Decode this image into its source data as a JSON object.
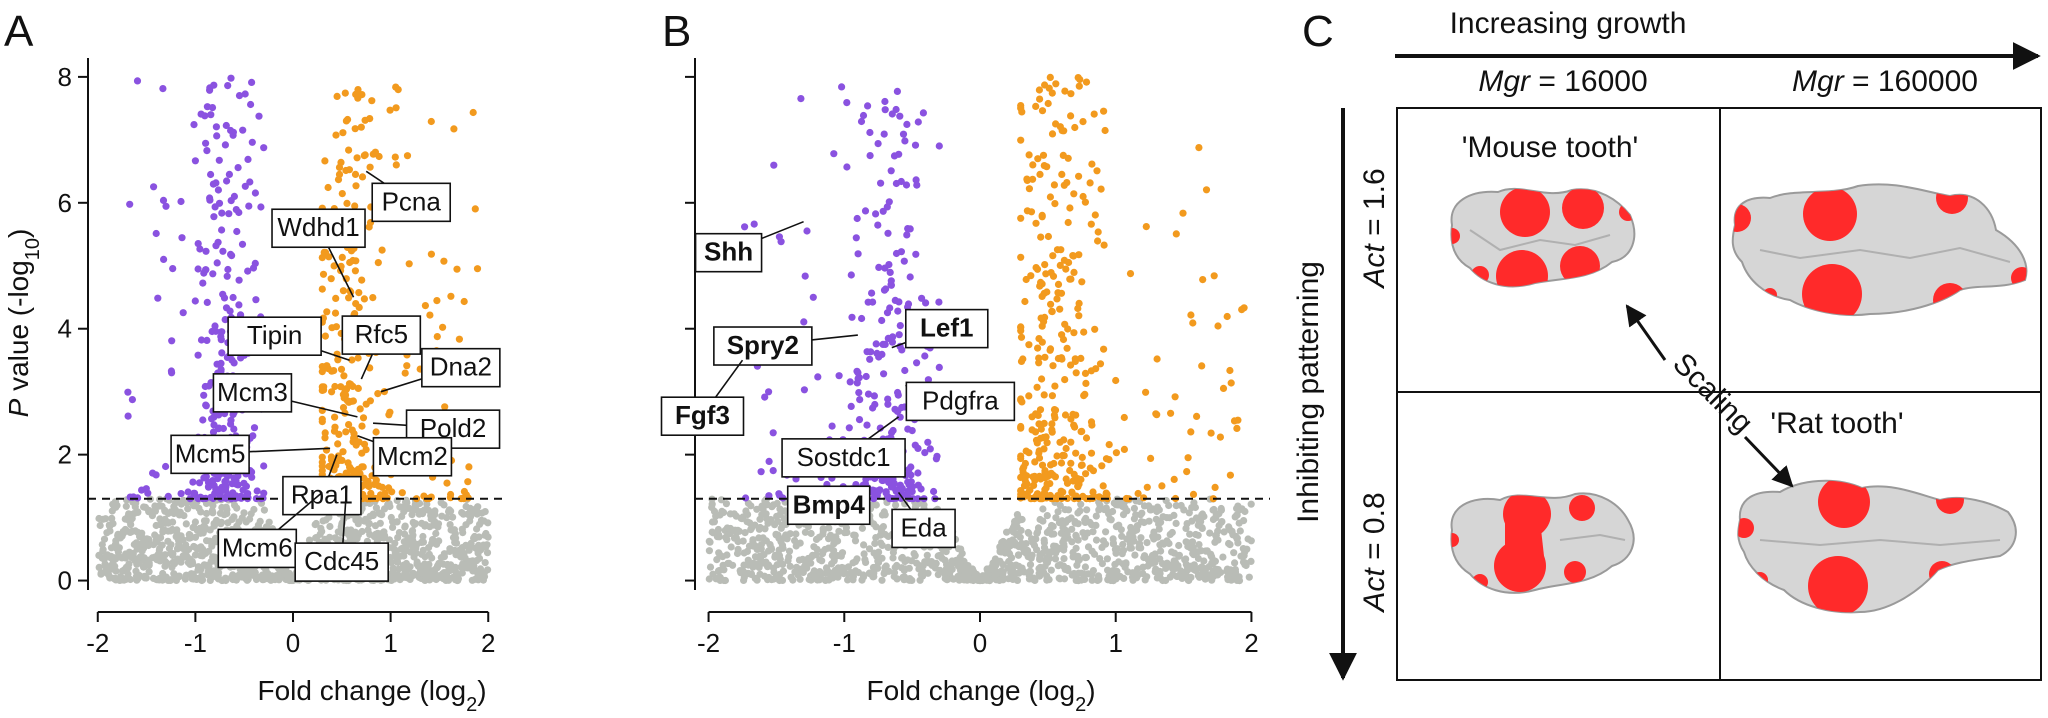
{
  "panels": [
    "A",
    "B",
    "C"
  ],
  "colors": {
    "up": "#f29a1e",
    "down": "#8a52e0",
    "ns": "#b9bcb6",
    "spot": "#ff2a2a",
    "tooth": "#d6d6d6"
  },
  "chart_data": [
    {
      "panel": "A",
      "type": "scatter",
      "title": "",
      "xlabel_main": "Fold change (log",
      "xlabel_sub": "2",
      "xlabel_close": ")",
      "ylabel_italic": "P",
      "ylabel_main": " value (-log",
      "ylabel_sub": "10",
      "ylabel_close": ")",
      "xlim": [
        -2.1,
        2.1
      ],
      "ylim": [
        -0.15,
        8.3
      ],
      "xticks": [
        -2,
        -1,
        0,
        1,
        2
      ],
      "xtick_labels": [
        "-2",
        "-1",
        "0",
        "1",
        "2"
      ],
      "yticks": [
        0,
        2,
        4,
        6,
        8
      ],
      "ytick_labels": [
        "0",
        "2",
        "4",
        "6",
        "8"
      ],
      "threshold": 1.3,
      "series": [
        {
          "name": "downregulated",
          "color": "#8a52e0",
          "seed": 11,
          "count": 330,
          "x_range": [
            -1.7,
            -0.3
          ],
          "y_range": [
            1.3,
            8.0
          ]
        },
        {
          "name": "upregulated",
          "color": "#f29a1e",
          "seed": 23,
          "count": 380,
          "x_range": [
            0.3,
            1.95
          ],
          "y_range": [
            1.3,
            8.0
          ]
        },
        {
          "name": "not significant",
          "color": "#b9bcb6",
          "seed": 37,
          "count": 1200,
          "x_range": [
            -2.0,
            2.0
          ],
          "y_range": [
            0,
            1.3
          ]
        }
      ],
      "labeled_genes": [
        {
          "name": "Pcna",
          "x": 0.75,
          "y": 6.5,
          "bold": false
        },
        {
          "name": "Wdhd1",
          "x": 0.62,
          "y": 4.5,
          "bold": false
        },
        {
          "name": "Tipin",
          "x": 0.58,
          "y": 3.5,
          "bold": false
        },
        {
          "name": "Rfc5",
          "x": 0.7,
          "y": 3.2,
          "bold": false
        },
        {
          "name": "Dna2",
          "x": 0.9,
          "y": 3.0,
          "bold": false
        },
        {
          "name": "Mcm3",
          "x": 0.66,
          "y": 2.6,
          "bold": false
        },
        {
          "name": "Pold2",
          "x": 0.82,
          "y": 2.5,
          "bold": false
        },
        {
          "name": "Mcm5",
          "x": 0.38,
          "y": 2.1,
          "bold": false
        },
        {
          "name": "Mcm2",
          "x": 0.66,
          "y": 2.3,
          "bold": false
        },
        {
          "name": "Rpa1",
          "x": 0.45,
          "y": 2.0,
          "bold": false
        },
        {
          "name": "Mcm6",
          "x": 0.3,
          "y": 1.4,
          "bold": false
        },
        {
          "name": "Cdc45",
          "x": 0.55,
          "y": 1.5,
          "bold": false
        }
      ]
    },
    {
      "panel": "B",
      "type": "scatter",
      "title": "",
      "xlabel_main": "Fold change (log",
      "xlabel_sub": "2",
      "xlabel_close": ")",
      "xlim": [
        -2.1,
        2.1
      ],
      "ylim": [
        -0.15,
        8.3
      ],
      "xticks": [
        -2,
        -1,
        0,
        1,
        2
      ],
      "xtick_labels": [
        "-2",
        "-1",
        "0",
        "1",
        "2"
      ],
      "yticks": [
        0,
        2,
        4,
        6,
        8
      ],
      "threshold": 1.3,
      "series": [
        {
          "name": "downregulated",
          "color": "#8a52e0",
          "seed": 53,
          "count": 300,
          "x_range": [
            -1.75,
            -0.3
          ],
          "y_range": [
            1.3,
            8.0
          ]
        },
        {
          "name": "upregulated",
          "color": "#f29a1e",
          "seed": 71,
          "count": 380,
          "x_range": [
            0.3,
            1.95
          ],
          "y_range": [
            1.3,
            8.0
          ]
        },
        {
          "name": "not significant",
          "color": "#b9bcb6",
          "seed": 89,
          "count": 1200,
          "x_range": [
            -2.0,
            2.0
          ],
          "y_range": [
            0,
            1.3
          ]
        }
      ],
      "labeled_genes": [
        {
          "name": "Shh",
          "x": -1.3,
          "y": 5.7,
          "bold": true
        },
        {
          "name": "Spry2",
          "x": -0.9,
          "y": 3.9,
          "bold": true
        },
        {
          "name": "Lef1",
          "x": -0.65,
          "y": 3.7,
          "bold": true
        },
        {
          "name": "Fgf3",
          "x": -1.75,
          "y": 3.5,
          "bold": true
        },
        {
          "name": "Pdgfra",
          "x": -0.55,
          "y": 3.1,
          "bold": false
        },
        {
          "name": "Sostdc1",
          "x": -0.6,
          "y": 2.6,
          "bold": false
        },
        {
          "name": "Bmp4",
          "x": -0.82,
          "y": 1.45,
          "bold": true
        },
        {
          "name": "Eda",
          "x": -0.6,
          "y": 1.4,
          "bold": false
        }
      ]
    }
  ],
  "panel_c": {
    "top_label": "Increasing growth",
    "side_label": "Inhibiting patterning",
    "mgr_italic": "Mgr",
    "mgr_left_value": " = 16000",
    "mgr_right_value": " = 160000",
    "act_italic": "Act",
    "act_top_value": " = 1.6",
    "act_bottom_value": " = 0.8",
    "mouse_label": "'Mouse tooth'",
    "rat_label": "'Rat tooth'",
    "scaling_label": "Scaling"
  }
}
